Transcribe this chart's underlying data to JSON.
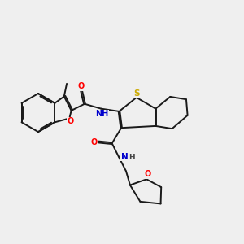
{
  "background_color": "#efefef",
  "bond_color": "#1a1a1a",
  "atom_colors": {
    "O": "#ff0000",
    "N": "#0000cd",
    "S": "#ccaa00",
    "H": "#444444",
    "C": "#1a1a1a"
  },
  "lw": 1.4
}
